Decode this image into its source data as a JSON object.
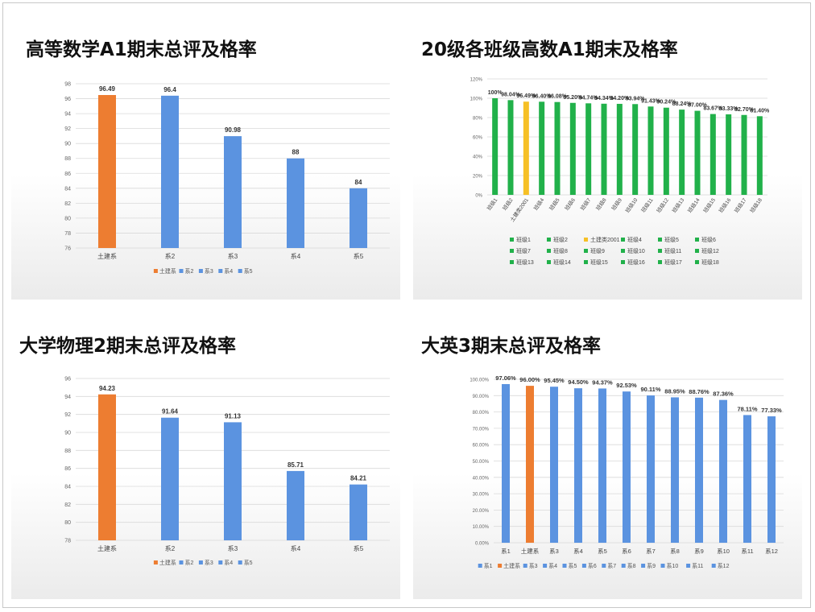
{
  "colors": {
    "orange": "#ed7d31",
    "blue": "#5b93e0",
    "green": "#21b14a",
    "gold": "#f6c026"
  },
  "chart_data": [
    {
      "type": "bar",
      "title": "高等数学A1期末总评及格率",
      "categories": [
        "土建系",
        "系2",
        "系3",
        "系4",
        "系5"
      ],
      "values": [
        96.49,
        96.4,
        90.98,
        88,
        84
      ],
      "value_labels": [
        "96.49",
        "96.4",
        "90.98",
        "88",
        "84"
      ],
      "highlight": 0,
      "ylim": [
        76,
        98
      ],
      "ystep": 2,
      "grid": true,
      "legend_position": "bottom",
      "legend": [
        "土建系",
        "系2",
        "系3",
        "系4",
        "系5"
      ]
    },
    {
      "type": "bar",
      "title": "20级各班级高数A1期末及格率",
      "categories": [
        "班级1",
        "班级2",
        "土建类2001",
        "班级4",
        "班级5",
        "班级6",
        "班级7",
        "班级8",
        "班级9",
        "班级10",
        "班级11",
        "班级12",
        "班级13",
        "班级14",
        "班级15",
        "班级16",
        "班级17",
        "班级18"
      ],
      "values": [
        100,
        98.04,
        96.49,
        96.4,
        96.08,
        95.2,
        94.74,
        94.34,
        94.2,
        93.94,
        91.43,
        90.24,
        88.24,
        87,
        83.67,
        83.33,
        82.7,
        81.4
      ],
      "value_labels": [
        "100%",
        "98.04%",
        "96.49%",
        "96.40%",
        "96.08%",
        "95.20%",
        "94.74%",
        "94.34%",
        "94.20%",
        "93.94%",
        "91.43%",
        "90.24%",
        "88.24%",
        "87.00%",
        "83.67%",
        "83.33%",
        "82.70%",
        "81.40%"
      ],
      "highlight": 2,
      "ylim": [
        0,
        120
      ],
      "ystep": 20,
      "ytick_suffix": "%",
      "grid": true,
      "legend_position": "bottom",
      "legend": [
        "班级1",
        "班级2",
        "土建类2001",
        "班级4",
        "班级5",
        "班级6",
        "班级7",
        "班级8",
        "班级9",
        "班级10",
        "班级11",
        "班级12",
        "班级13",
        "班级14",
        "班级15",
        "班级16",
        "班级17",
        "班级18"
      ]
    },
    {
      "type": "bar",
      "title": "大学物理2期末总评及格率",
      "categories": [
        "土建系",
        "系2",
        "系3",
        "系4",
        "系5"
      ],
      "values": [
        94.23,
        91.64,
        91.13,
        85.71,
        84.21
      ],
      "value_labels": [
        "94.23",
        "91.64",
        "91.13",
        "85.71",
        "84.21"
      ],
      "highlight": 0,
      "ylim": [
        78,
        96
      ],
      "ystep": 2,
      "grid": true,
      "legend_position": "bottom",
      "legend": [
        "土建系",
        "系2",
        "系3",
        "系4",
        "系5"
      ]
    },
    {
      "type": "bar",
      "title": "大英3期末总评及格率",
      "categories": [
        "系1",
        "土建系",
        "系3",
        "系4",
        "系5",
        "系6",
        "系7",
        "系8",
        "系9",
        "系10",
        "系11",
        "系12"
      ],
      "values": [
        97.06,
        96.0,
        95.45,
        94.5,
        94.37,
        92.53,
        90.11,
        88.95,
        88.76,
        87.36,
        78.11,
        77.33
      ],
      "value_labels": [
        "97.06%",
        "96.00%",
        "95.45%",
        "94.50%",
        "94.37%",
        "92.53%",
        "90.11%",
        "88.95%",
        "88.76%",
        "87.36%",
        "78.11%",
        "77.33%"
      ],
      "highlight": 1,
      "ylim": [
        0,
        100
      ],
      "ystep": 10,
      "ytick_suffix": ".00%",
      "grid": true,
      "legend_position": "bottom",
      "legend": [
        "系1",
        "土建系",
        "系3",
        "系4",
        "系5",
        "系6",
        "系7",
        "系8",
        "系9",
        "系10",
        "系11",
        "系12"
      ]
    }
  ]
}
